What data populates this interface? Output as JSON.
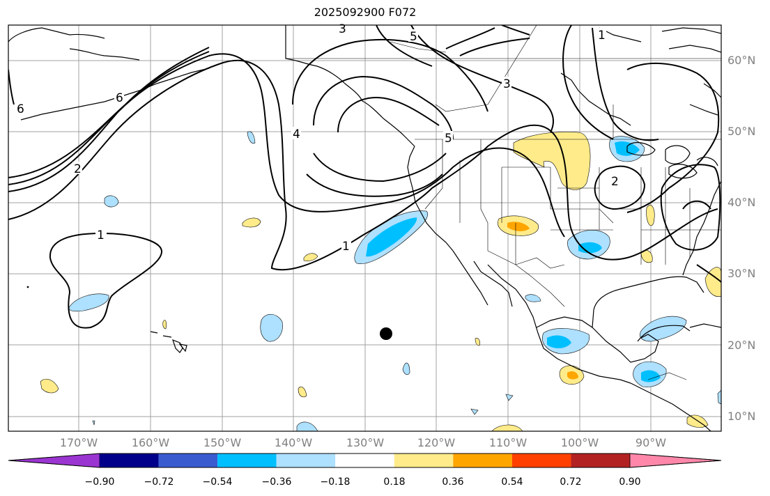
{
  "map": {
    "title": "2025092900 F072",
    "lat_labels": [
      "60°N",
      "50°N",
      "40°N",
      "30°N",
      "20°N",
      "10°N"
    ],
    "lon_labels": [
      "170°W",
      "160°W",
      "150°W",
      "140°W",
      "130°W",
      "120°W",
      "110°W",
      "100°W",
      "90°W"
    ],
    "contour_labels": [
      "1",
      "1",
      "1",
      "2",
      "2",
      "3",
      "3",
      "4",
      "5",
      "5",
      "6",
      "6"
    ],
    "marker": "black dot near 22°N 127°W",
    "colorbar": {
      "tick_labels": [
        "−0.90",
        "−0.72",
        "−0.54",
        "−0.36",
        "−0.18",
        "0.18",
        "0.36",
        "0.54",
        "0.72",
        "0.90"
      ],
      "colors": [
        "#9b35d1",
        "#00008b",
        "#3a5bd0",
        "#00bfff",
        "#aee0ff",
        "#ffffff",
        "#ffeb8a",
        "#ffa500",
        "#ff4000",
        "#b22222",
        "#ff88aa"
      ]
    },
    "colors": {
      "grid": "#a0a0a0",
      "coast": "#000000",
      "contour": "#000000",
      "label": "#808080"
    }
  }
}
